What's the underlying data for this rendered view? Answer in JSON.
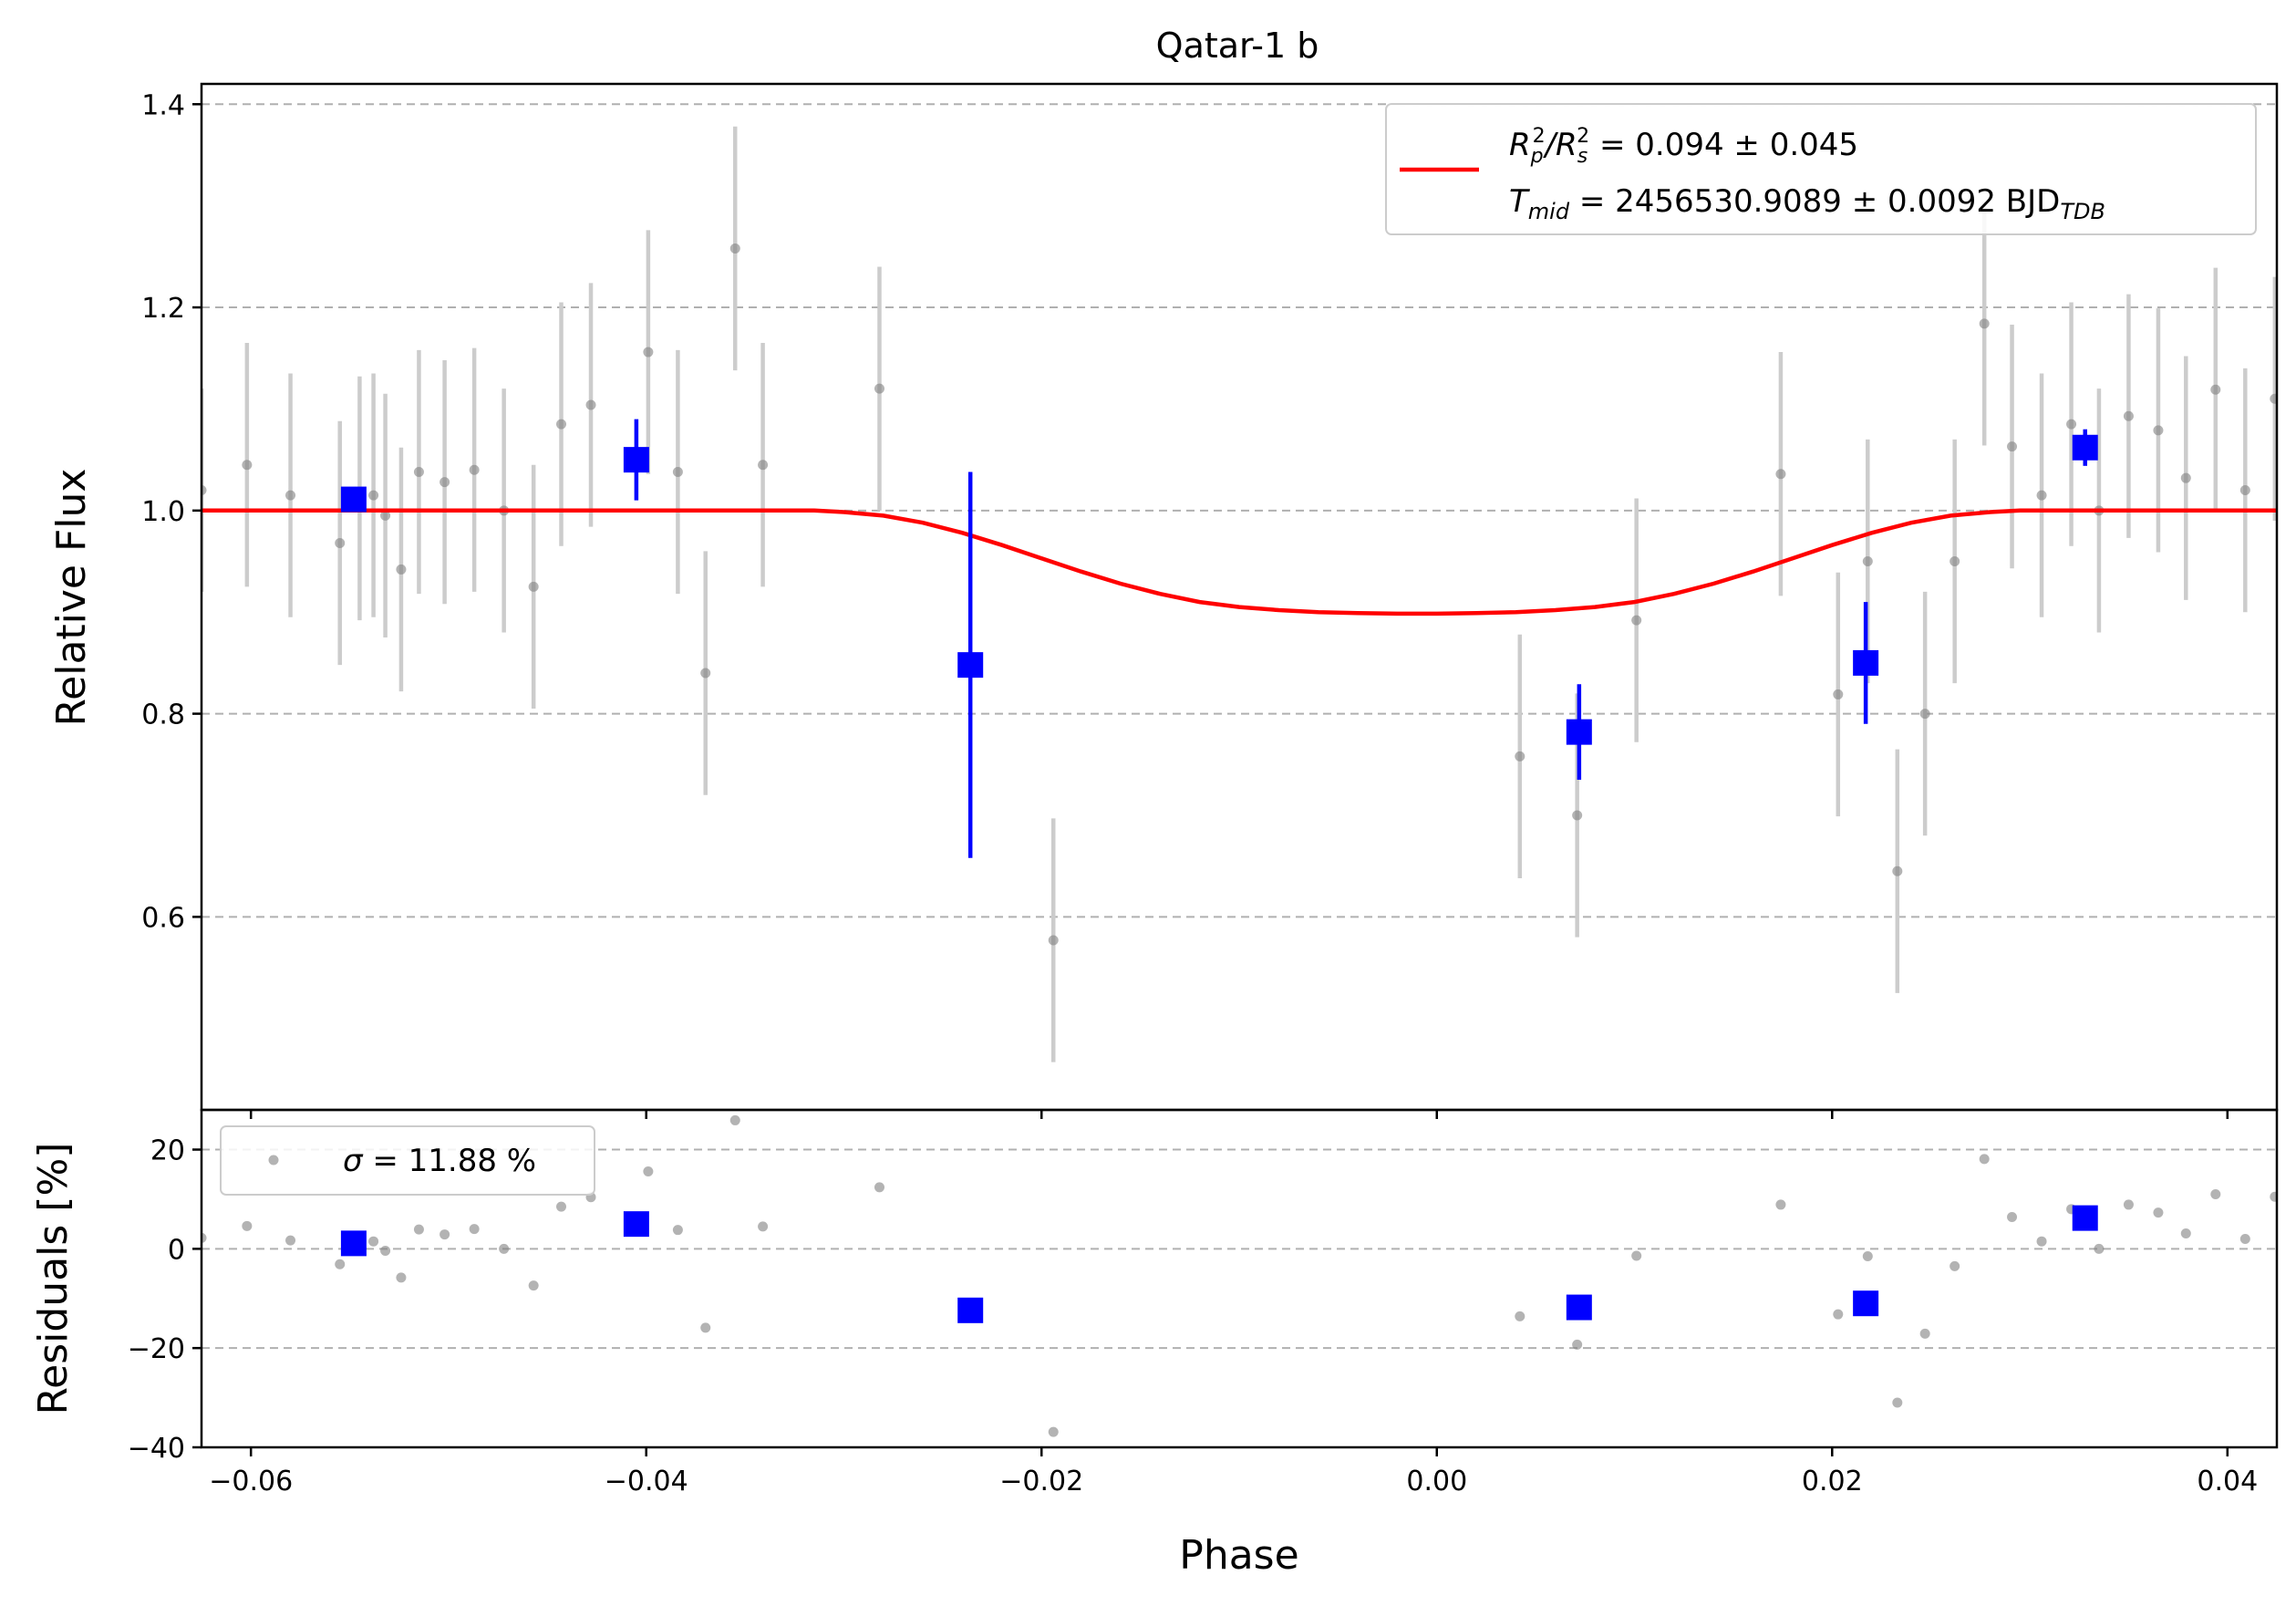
{
  "chart_data": {
    "type": "scatter",
    "title": "Qatar-1 b",
    "xlabel": "Phase",
    "xlim": [
      -0.0625,
      0.0425
    ],
    "x_ticks": [
      -0.06,
      -0.04,
      -0.02,
      0.0,
      0.02,
      0.04
    ],
    "x_tick_labels": [
      "−0.06",
      "−0.04",
      "−0.02",
      "0.00",
      "0.02",
      "0.04"
    ],
    "grid": "horizontal-dashed",
    "colors": {
      "raw": "#808080",
      "raw_err": "#cccccc",
      "binned": "#0000ff",
      "model": "#ff0000"
    },
    "top": {
      "ylabel": "Relative Flux",
      "ylim": [
        0.41,
        1.42
      ],
      "y_ticks": [
        0.6,
        0.8,
        1.0,
        1.2,
        1.4
      ],
      "y_tick_labels": [
        "0.6",
        "0.8",
        "1.0",
        "1.2",
        "1.4"
      ],
      "legend": {
        "position": "upper right",
        "line1_pre": "R",
        "line1_mid": "/R",
        "line1_value": " = 0.094 ± 0.045",
        "line2_pre": "T",
        "line2_sub": "mid",
        "line2_value": " = 2456530.9089 ± 0.0092 BJD",
        "line2_unit_sub": "TDB"
      },
      "raw": [
        [
          -0.0625,
          1.02,
          0.1
        ],
        [
          -0.0602,
          1.045,
          0.12
        ],
        [
          -0.058,
          1.015,
          0.12
        ],
        [
          -0.0555,
          0.968,
          0.12
        ],
        [
          -0.0545,
          1.012,
          0.12
        ],
        [
          -0.0538,
          1.015,
          0.12
        ],
        [
          -0.0532,
          0.995,
          0.12
        ],
        [
          -0.0524,
          0.942,
          0.12
        ],
        [
          -0.0515,
          1.038,
          0.12
        ],
        [
          -0.0502,
          1.028,
          0.12
        ],
        [
          -0.0487,
          1.04,
          0.12
        ],
        [
          -0.0472,
          1.0,
          0.12
        ],
        [
          -0.0457,
          0.925,
          0.12
        ],
        [
          -0.0443,
          1.085,
          0.12
        ],
        [
          -0.0428,
          1.104,
          0.12
        ],
        [
          -0.0399,
          1.156,
          0.12
        ],
        [
          -0.0384,
          1.038,
          0.12
        ],
        [
          -0.037,
          0.84,
          0.12
        ],
        [
          -0.0355,
          1.258,
          0.12
        ],
        [
          -0.0341,
          1.045,
          0.12
        ],
        [
          -0.0282,
          1.12,
          0.12
        ],
        [
          -0.0194,
          0.577,
          0.12
        ],
        [
          0.0042,
          0.758,
          0.12
        ],
        [
          0.0071,
          0.7,
          0.12
        ],
        [
          0.0101,
          0.892,
          0.12
        ],
        [
          0.0174,
          1.036,
          0.12
        ],
        [
          0.0203,
          0.819,
          0.12
        ],
        [
          0.0218,
          0.95,
          0.12
        ],
        [
          0.0233,
          0.645,
          0.12
        ],
        [
          0.0247,
          0.8,
          0.12
        ],
        [
          0.0262,
          0.95,
          0.12
        ],
        [
          0.0277,
          1.184,
          0.12
        ],
        [
          0.0291,
          1.063,
          0.12
        ],
        [
          0.0306,
          1.015,
          0.12
        ],
        [
          0.0321,
          1.085,
          0.12
        ],
        [
          0.0335,
          1.0,
          0.12
        ],
        [
          0.035,
          1.093,
          0.12
        ],
        [
          0.0365,
          1.079,
          0.12
        ],
        [
          0.0379,
          1.032,
          0.12
        ],
        [
          0.0394,
          1.119,
          0.12
        ],
        [
          0.0409,
          1.02,
          0.12
        ],
        [
          0.0424,
          1.11,
          0.12
        ]
      ],
      "binned": [
        [
          -0.0548,
          1.011,
          0.0
        ],
        [
          -0.0405,
          1.05,
          0.04
        ],
        [
          -0.0236,
          0.848,
          0.19
        ],
        [
          0.0072,
          0.782,
          0.047
        ],
        [
          0.0217,
          0.85,
          0.06
        ],
        [
          0.0328,
          1.062,
          0.018
        ]
      ],
      "model": [
        [
          -0.0625,
          1.0
        ],
        [
          -0.0315,
          1.0
        ],
        [
          -0.03,
          0.9985
        ],
        [
          -0.028,
          0.995
        ],
        [
          -0.026,
          0.988
        ],
        [
          -0.024,
          0.978
        ],
        [
          -0.022,
          0.966
        ],
        [
          -0.02,
          0.953
        ],
        [
          -0.018,
          0.94
        ],
        [
          -0.016,
          0.928
        ],
        [
          -0.014,
          0.918
        ],
        [
          -0.012,
          0.91
        ],
        [
          -0.01,
          0.905
        ],
        [
          -0.008,
          0.902
        ],
        [
          -0.006,
          0.9
        ],
        [
          -0.004,
          0.899
        ],
        [
          -0.002,
          0.8985
        ],
        [
          0.0,
          0.8985
        ],
        [
          0.002,
          0.899
        ],
        [
          0.004,
          0.9
        ],
        [
          0.006,
          0.902
        ],
        [
          0.008,
          0.905
        ],
        [
          0.01,
          0.91
        ],
        [
          0.012,
          0.918
        ],
        [
          0.014,
          0.928
        ],
        [
          0.016,
          0.94
        ],
        [
          0.018,
          0.953
        ],
        [
          0.02,
          0.966
        ],
        [
          0.022,
          0.978
        ],
        [
          0.024,
          0.988
        ],
        [
          0.026,
          0.995
        ],
        [
          0.028,
          0.9985
        ],
        [
          0.0295,
          1.0
        ],
        [
          0.0425,
          1.0
        ]
      ]
    },
    "bottom": {
      "ylabel": "Residuals [%]",
      "ylim": [
        -40,
        28
      ],
      "y_ticks": [
        -40,
        -20,
        0,
        20
      ],
      "y_tick_labels": [
        "−40",
        "−20",
        "0",
        "20"
      ],
      "legend": {
        "position": "upper left",
        "sigma_symbol": "σ",
        "text": " = 11.88 %"
      },
      "raw": [
        [
          -0.0625,
          2.2
        ],
        [
          -0.0602,
          4.6
        ],
        [
          -0.058,
          1.7
        ],
        [
          -0.0555,
          -3.1
        ],
        [
          -0.0545,
          1.3
        ],
        [
          -0.0538,
          1.5
        ],
        [
          -0.0532,
          -0.4
        ],
        [
          -0.0524,
          -5.8
        ],
        [
          -0.0515,
          3.9
        ],
        [
          -0.0502,
          2.9
        ],
        [
          -0.0487,
          4.0
        ],
        [
          -0.0472,
          0.0
        ],
        [
          -0.0457,
          -7.4
        ],
        [
          -0.0443,
          8.5
        ],
        [
          -0.0428,
          10.4
        ],
        [
          -0.0399,
          15.6
        ],
        [
          -0.0384,
          3.8
        ],
        [
          -0.037,
          -15.9
        ],
        [
          -0.0355,
          25.9
        ],
        [
          -0.0341,
          4.5
        ],
        [
          -0.0282,
          12.4
        ],
        [
          -0.0194,
          -36.9
        ],
        [
          0.0042,
          -13.6
        ],
        [
          0.0071,
          -19.3
        ],
        [
          0.0101,
          -1.4
        ],
        [
          0.0174,
          8.9
        ],
        [
          0.0203,
          -13.2
        ],
        [
          0.0218,
          -1.5
        ],
        [
          0.0233,
          -31.0
        ],
        [
          0.0247,
          -17.1
        ],
        [
          0.0262,
          -3.5
        ],
        [
          0.0277,
          18.1
        ],
        [
          0.0291,
          6.4
        ],
        [
          0.0306,
          1.5
        ],
        [
          0.0321,
          8.0
        ],
        [
          0.0335,
          0.0
        ],
        [
          0.035,
          8.9
        ],
        [
          0.0365,
          7.3
        ],
        [
          0.0379,
          3.1
        ],
        [
          0.0394,
          11.0
        ],
        [
          0.0409,
          2.0
        ],
        [
          0.0424,
          10.5
        ]
      ],
      "binned": [
        [
          -0.0548,
          1.1
        ],
        [
          -0.0405,
          5.0
        ],
        [
          -0.0236,
          -12.4
        ],
        [
          0.0072,
          -11.8
        ],
        [
          0.0217,
          -11.0
        ],
        [
          0.0328,
          6.2
        ]
      ]
    }
  }
}
